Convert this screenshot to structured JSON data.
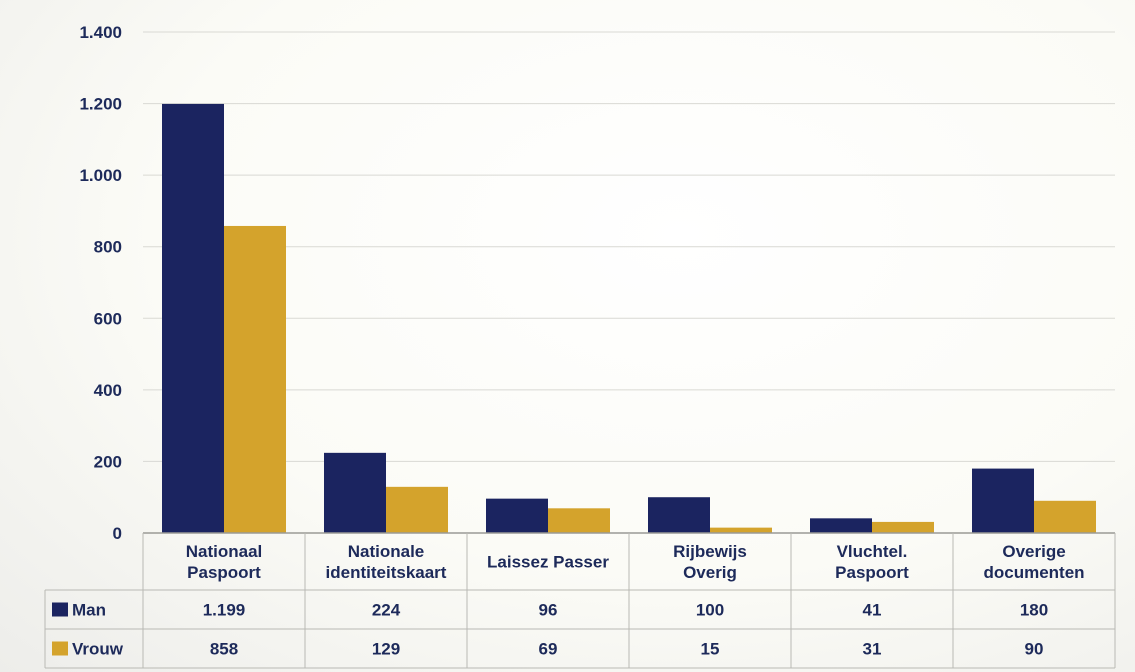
{
  "chart_data": {
    "type": "bar",
    "categories": [
      [
        "Nationaal",
        "Paspoort"
      ],
      [
        "Nationale",
        "identiteitskaart"
      ],
      [
        "Laissez Passer"
      ],
      [
        "Rijbewijs",
        "Overig"
      ],
      [
        "Vluchtel.",
        "Paspoort"
      ],
      [
        "Overige",
        "documenten"
      ]
    ],
    "series": [
      {
        "name": "Man",
        "color": "#1b2460",
        "values": [
          1199,
          224,
          96,
          100,
          41,
          180
        ],
        "labels": [
          "1.199",
          "224",
          "96",
          "100",
          "41",
          "180"
        ]
      },
      {
        "name": "Vrouw",
        "color": "#d4a32c",
        "values": [
          858,
          129,
          69,
          15,
          31,
          90
        ],
        "labels": [
          "858",
          "129",
          "69",
          "15",
          "31",
          "90"
        ]
      }
    ],
    "yticks": [
      {
        "value": 0,
        "label": "0"
      },
      {
        "value": 200,
        "label": "200"
      },
      {
        "value": 400,
        "label": "400"
      },
      {
        "value": 600,
        "label": "600"
      },
      {
        "value": 800,
        "label": "800"
      },
      {
        "value": 1000,
        "label": "1.000"
      },
      {
        "value": 1200,
        "label": "1.200"
      },
      {
        "value": 1400,
        "label": "1.400"
      }
    ],
    "ylim": [
      0,
      1400
    ],
    "grid": true,
    "data_table": true,
    "title": "",
    "xlabel": "",
    "ylabel": ""
  }
}
